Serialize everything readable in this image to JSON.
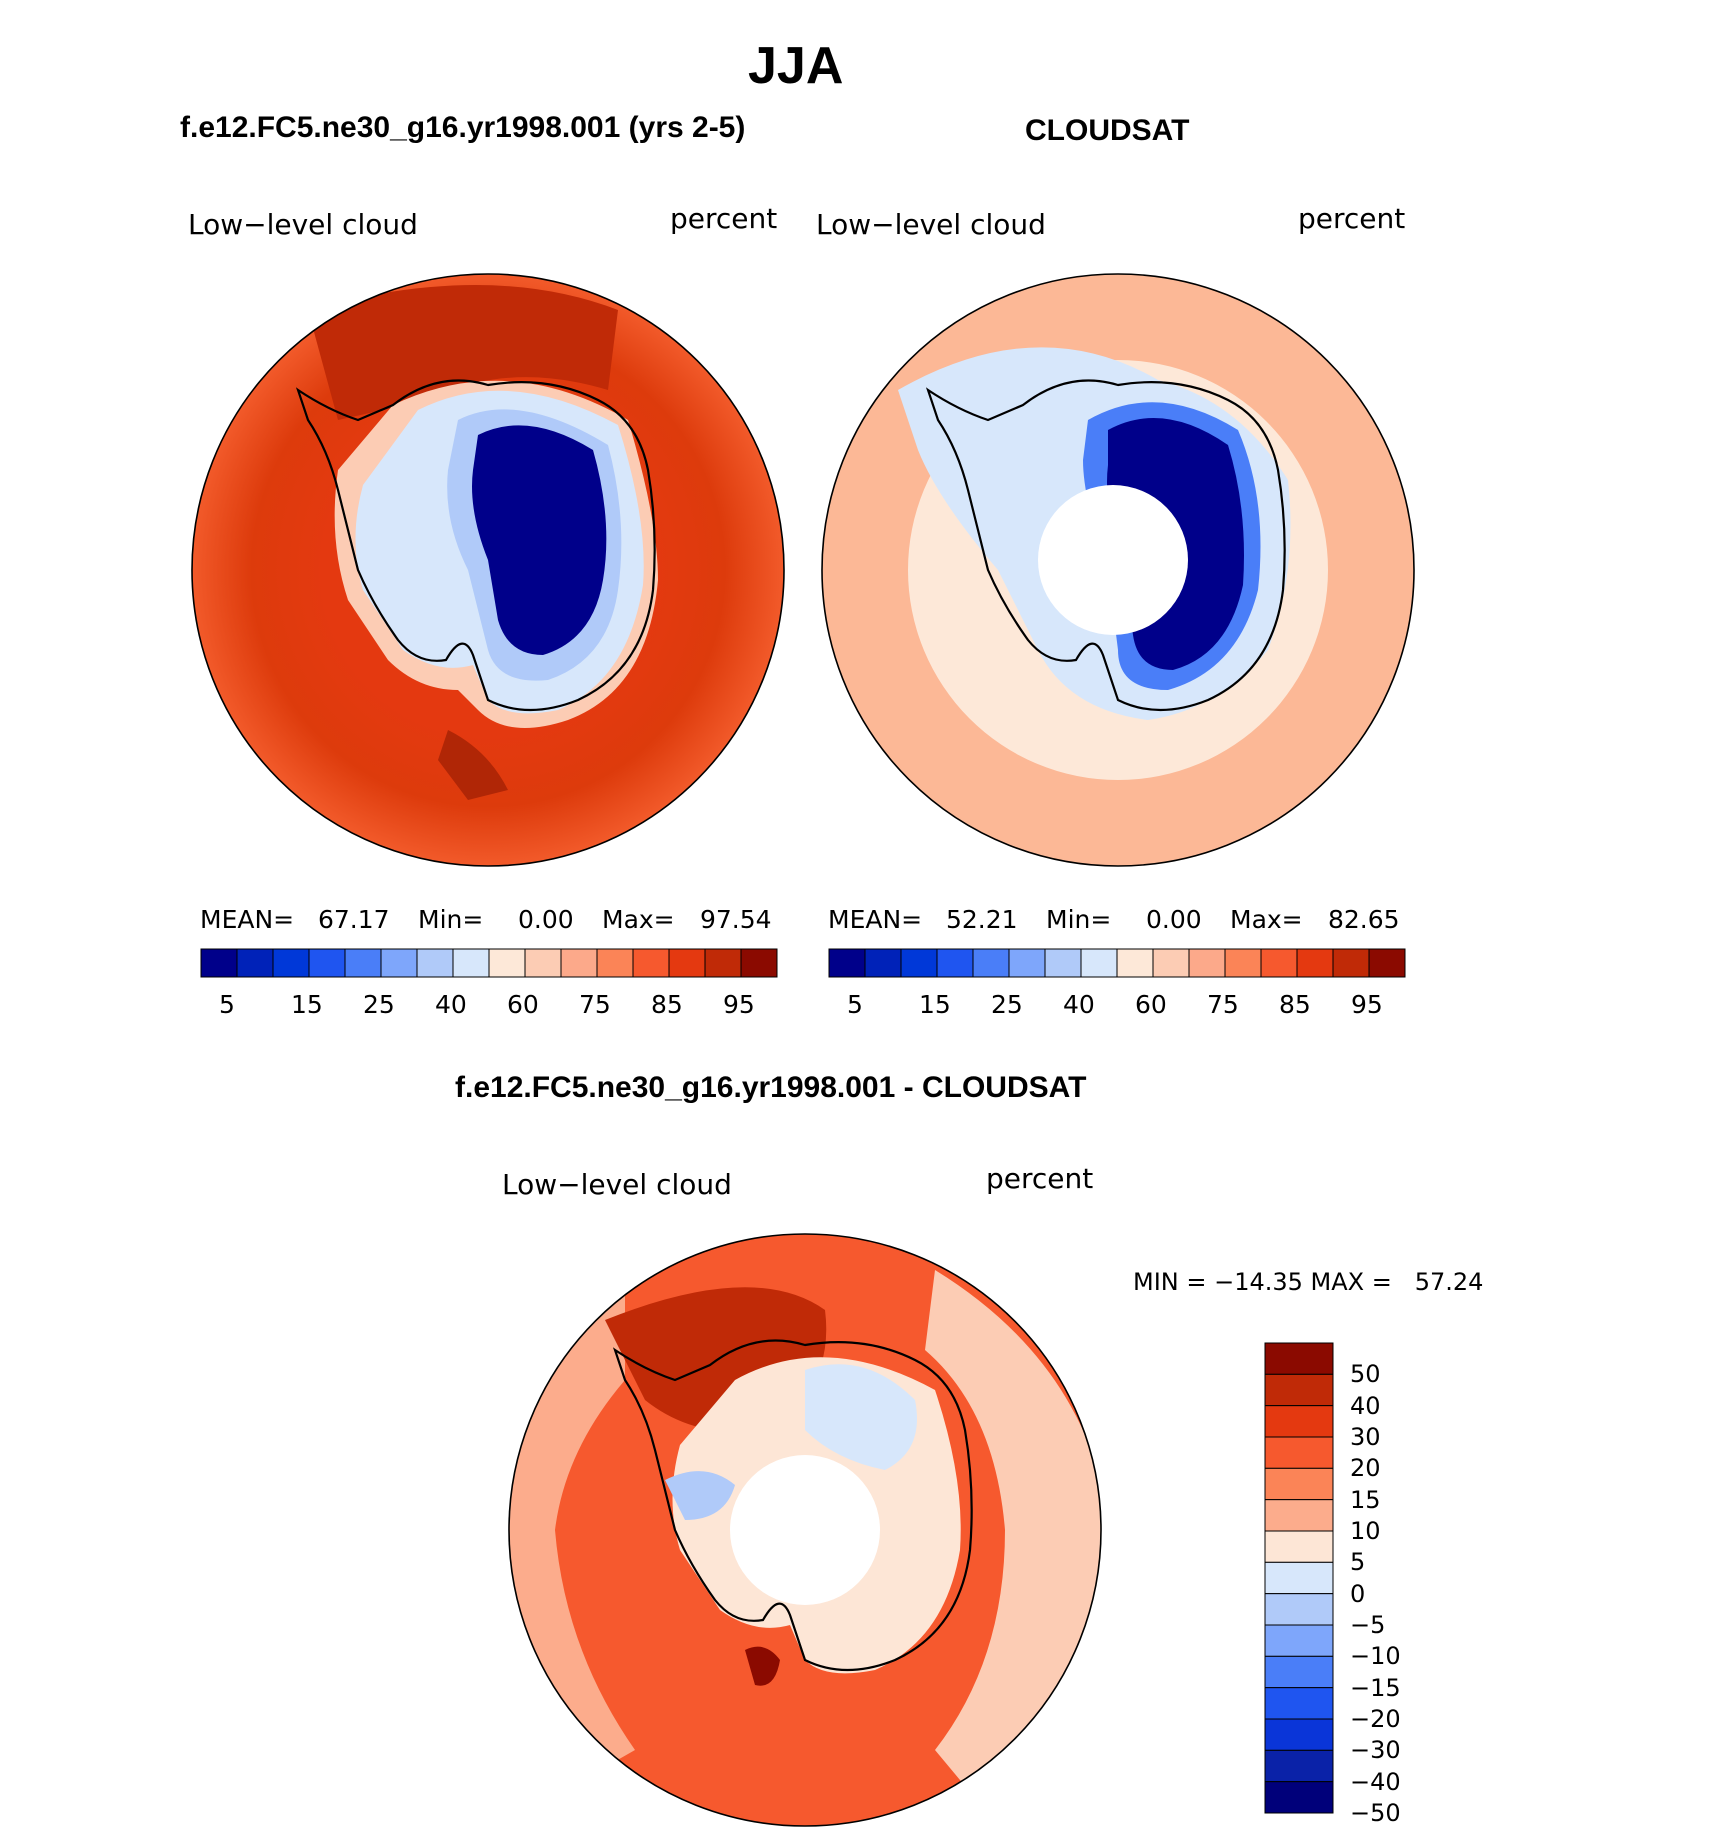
{
  "title": "JJA",
  "panels": [
    {
      "id": "model",
      "header": "f.e12.FC5.ne30_g16.yr1998.001 (yrs 2-5)",
      "variable": "Low−level cloud",
      "units": "percent",
      "stats": {
        "mean_label": "MEAN=",
        "mean": "67.17",
        "min_label": "Min=",
        "min": "0.00",
        "max_label": "Max=",
        "max": "97.54"
      },
      "ocean_color": "#dd3b0c",
      "pole_hole": false
    },
    {
      "id": "obs",
      "header": "CLOUDSAT",
      "variable": "Low−level cloud",
      "units": "percent",
      "stats": {
        "mean_label": "MEAN=",
        "mean": "52.21",
        "min_label": "Min=",
        "min": "0.00",
        "max_label": "Max=",
        "max": "82.65"
      },
      "ocean_color": "#fdd6bd",
      "pole_hole": true
    }
  ],
  "abs_colorbar": {
    "colors": [
      "#00008a",
      "#0022b8",
      "#0038d8",
      "#1f55f0",
      "#4a7ef8",
      "#7ea6fb",
      "#b0caf9",
      "#d7e7fb",
      "#fde8d8",
      "#fcccb4",
      "#fca98a",
      "#fb8457",
      "#f6592e",
      "#e43910",
      "#c02a07",
      "#8b0a00"
    ],
    "labels": [
      "5",
      "15",
      "25",
      "40",
      "60",
      "75",
      "85",
      "95"
    ]
  },
  "diff_panel": {
    "header": "f.e12.FC5.ne30_g16.yr1998.001 - CLOUDSAT",
    "variable": "Low−level cloud",
    "units": "percent",
    "minmax_text": "MIN = −14.35 MAX =   57.24",
    "colorbar": {
      "colors": [
        "#8b0a00",
        "#c02a07",
        "#e43910",
        "#f6592e",
        "#fb8457",
        "#fcac8c",
        "#fde6d6",
        "#d7e7fb",
        "#b0caf9",
        "#7ea6fb",
        "#4a7ef8",
        "#1f55f0",
        "#0a35d8",
        "#0a22a8",
        "#00007a"
      ],
      "labels": [
        "50",
        "40",
        "30",
        "20",
        "15",
        "10",
        "5",
        "0",
        "−5",
        "−10",
        "−15",
        "−20",
        "−30",
        "−40",
        "−50"
      ]
    }
  }
}
